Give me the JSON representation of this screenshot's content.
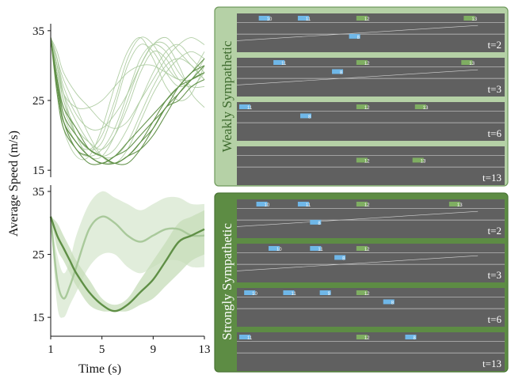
{
  "chart_data": [
    {
      "type": "line",
      "panel": "top-left",
      "ylabel": "Average Speed (m/s)",
      "xlim": [
        1,
        13
      ],
      "ylim": [
        14,
        36
      ],
      "yticks": [
        15,
        25,
        35
      ],
      "colors": {
        "light": "#a9c99b",
        "dark": "#5f8f46"
      },
      "x": [
        1,
        1.5,
        2,
        3,
        4,
        5,
        6,
        7,
        8,
        9,
        10,
        11,
        12,
        13
      ],
      "series": [
        {
          "group": "light",
          "values": [
            34,
            30,
            25,
            21,
            19,
            18,
            20,
            24,
            29,
            32,
            31,
            28,
            27,
            29
          ]
        },
        {
          "group": "light",
          "values": [
            34,
            29,
            24,
            20,
            18,
            19,
            24,
            30,
            33,
            32,
            29,
            27,
            28,
            31
          ]
        },
        {
          "group": "light",
          "values": [
            34,
            31,
            27,
            23,
            21,
            21,
            23,
            26,
            30,
            33,
            34,
            32,
            30,
            28
          ]
        },
        {
          "group": "light",
          "values": [
            34,
            28,
            22,
            18,
            17,
            18,
            21,
            26,
            31,
            33,
            32,
            29,
            27,
            27
          ]
        },
        {
          "group": "light",
          "values": [
            34,
            30,
            25,
            20,
            18,
            17,
            18,
            21,
            25,
            29,
            32,
            33,
            31,
            29
          ]
        },
        {
          "group": "light",
          "values": [
            34,
            32,
            29,
            26,
            24,
            22,
            21,
            22,
            25,
            28,
            31,
            33,
            34,
            33
          ]
        },
        {
          "group": "light",
          "values": [
            34,
            29,
            23,
            19,
            18,
            20,
            25,
            31,
            34,
            33,
            30,
            28,
            29,
            32
          ]
        },
        {
          "group": "light",
          "values": [
            34,
            30,
            26,
            22,
            19,
            17,
            17,
            19,
            23,
            27,
            30,
            31,
            30,
            28
          ]
        },
        {
          "group": "light",
          "values": [
            34,
            31,
            28,
            24,
            20,
            17,
            16,
            18,
            22,
            26,
            29,
            31,
            32,
            31
          ]
        },
        {
          "group": "light",
          "values": [
            34,
            28,
            21,
            17,
            17,
            21,
            27,
            32,
            34,
            31,
            27,
            25,
            26,
            30
          ]
        },
        {
          "group": "light",
          "values": [
            34,
            30,
            26,
            24,
            24,
            25,
            27,
            29,
            30,
            30,
            29,
            28,
            28,
            29
          ]
        },
        {
          "group": "light",
          "values": [
            34,
            31,
            26,
            20,
            17,
            17,
            20,
            25,
            30,
            33,
            33,
            30,
            26,
            24
          ]
        },
        {
          "group": "dark",
          "values": [
            34,
            27,
            22,
            19,
            17,
            16,
            16,
            17,
            19,
            21,
            24,
            26,
            28,
            30
          ]
        },
        {
          "group": "dark",
          "values": [
            34,
            28,
            23,
            20,
            18,
            17,
            16,
            17,
            18,
            20,
            23,
            26,
            28,
            29
          ]
        },
        {
          "group": "dark",
          "values": [
            34,
            27,
            22,
            18,
            17,
            16,
            17,
            18,
            20,
            22,
            24,
            27,
            29,
            31
          ]
        },
        {
          "group": "dark",
          "values": [
            34,
            28,
            24,
            21,
            18,
            17,
            16,
            16,
            18,
            21,
            24,
            25,
            27,
            28
          ]
        },
        {
          "group": "dark",
          "values": [
            34,
            26,
            21,
            18,
            16,
            16,
            17,
            19,
            21,
            23,
            25,
            27,
            29,
            30
          ]
        },
        {
          "group": "dark",
          "values": [
            34,
            27,
            22,
            19,
            17,
            16,
            16,
            17,
            19,
            22,
            25,
            27,
            28,
            29
          ]
        }
      ]
    },
    {
      "type": "line",
      "panel": "bottom-left",
      "xlabel": "Time (s)",
      "xlim": [
        1,
        13
      ],
      "ylim": [
        12,
        36
      ],
      "xticks": [
        1,
        5,
        9,
        13
      ],
      "yticks": [
        15,
        25,
        35
      ],
      "colors": {
        "light": "#a9c99b",
        "dark": "#5f8f46",
        "light_band": "#dcead5",
        "dark_band": "#c5dcb8"
      },
      "x": [
        1,
        1.5,
        2,
        2.5,
        3,
        4,
        5,
        6,
        7,
        8,
        9,
        10,
        11,
        12,
        13
      ],
      "series": [
        {
          "group": "light",
          "values": [
            31,
            21,
            18,
            20,
            23,
            29,
            31,
            30,
            28,
            27,
            28,
            29,
            29,
            28,
            28
          ],
          "lower": [
            31,
            17,
            15,
            17,
            19,
            23,
            25,
            25,
            23,
            22,
            23,
            24,
            24,
            23,
            23
          ],
          "upper": [
            31,
            25,
            22,
            24,
            28,
            33,
            35,
            34,
            33,
            32,
            33,
            34,
            34,
            33,
            33
          ]
        },
        {
          "group": "dark",
          "values": [
            31,
            28,
            26,
            24,
            22,
            19,
            17,
            16,
            17,
            19,
            21,
            24,
            27,
            28,
            29
          ],
          "lower": [
            31,
            26,
            24,
            22,
            20,
            17,
            16,
            16,
            16,
            17,
            18,
            20,
            22,
            24,
            25
          ],
          "upper": [
            31,
            30,
            28,
            26,
            24,
            21,
            18,
            17,
            18,
            21,
            24,
            27,
            30,
            31,
            32
          ]
        }
      ]
    }
  ],
  "panels": {
    "weak": {
      "title": "Weakly Sympathetic",
      "rows": [
        {
          "t": "t=2",
          "cars": [
            {
              "x": 0.08,
              "lane": 0,
              "c": "blue",
              "label": "10"
            },
            {
              "x": 0.24,
              "lane": 0,
              "c": "blue",
              "label": "11"
            },
            {
              "x": 0.48,
              "lane": 0,
              "c": "green",
              "label": "12"
            },
            {
              "x": 0.45,
              "lane": 2,
              "c": "blue",
              "label": "8"
            },
            {
              "x": 0.92,
              "lane": 0,
              "c": "green",
              "label": "13"
            }
          ]
        },
        {
          "t": "t=3",
          "cars": [
            {
              "x": 0.14,
              "lane": 0,
              "c": "blue",
              "label": "11"
            },
            {
              "x": 0.38,
              "lane": 1,
              "c": "blue",
              "label": "8"
            },
            {
              "x": 0.48,
              "lane": 0,
              "c": "green",
              "label": "12"
            },
            {
              "x": 0.91,
              "lane": 0,
              "c": "green",
              "label": "13"
            }
          ]
        },
        {
          "t": "t=6",
          "cars": [
            {
              "x": 0.0,
              "lane": 0,
              "c": "blue",
              "label": "11"
            },
            {
              "x": 0.25,
              "lane": 1,
              "c": "blue",
              "label": "8"
            },
            {
              "x": 0.48,
              "lane": 0,
              "c": "green",
              "label": "12"
            },
            {
              "x": 0.72,
              "lane": 0,
              "c": "green",
              "label": "13"
            }
          ]
        },
        {
          "t": "t=13",
          "cars": [
            {
              "x": 0.48,
              "lane": 1,
              "c": "green",
              "label": "12"
            },
            {
              "x": 0.71,
              "lane": 1,
              "c": "green",
              "label": "13"
            }
          ]
        }
      ]
    },
    "strong": {
      "title": "Strongly Sympathetic",
      "rows": [
        {
          "t": "t=2",
          "cars": [
            {
              "x": 0.07,
              "lane": 0,
              "c": "blue",
              "label": "10"
            },
            {
              "x": 0.24,
              "lane": 0,
              "c": "blue",
              "label": "11"
            },
            {
              "x": 0.48,
              "lane": 0,
              "c": "green",
              "label": "12"
            },
            {
              "x": 0.29,
              "lane": 2,
              "c": "blue",
              "label": "8"
            },
            {
              "x": 0.86,
              "lane": 0,
              "c": "green",
              "label": "13"
            }
          ]
        },
        {
          "t": "t=3",
          "cars": [
            {
              "x": 0.12,
              "lane": 0,
              "c": "blue",
              "label": "10"
            },
            {
              "x": 0.29,
              "lane": 0,
              "c": "blue",
              "label": "11"
            },
            {
              "x": 0.39,
              "lane": 1,
              "c": "blue",
              "label": "8"
            },
            {
              "x": 0.48,
              "lane": 0,
              "c": "green",
              "label": "12"
            }
          ]
        },
        {
          "t": "t=6",
          "cars": [
            {
              "x": 0.02,
              "lane": 0,
              "c": "blue",
              "label": "10"
            },
            {
              "x": 0.18,
              "lane": 0,
              "c": "blue",
              "label": "11"
            },
            {
              "x": 0.33,
              "lane": 0,
              "c": "blue",
              "label": "9"
            },
            {
              "x": 0.48,
              "lane": 0,
              "c": "green",
              "label": "12"
            },
            {
              "x": 0.59,
              "lane": 1,
              "c": "blue",
              "label": "8"
            }
          ]
        },
        {
          "t": "t=13",
          "cars": [
            {
              "x": 0.0,
              "lane": 0,
              "c": "blue",
              "label": "11"
            },
            {
              "x": 0.48,
              "lane": 0,
              "c": "green",
              "label": "12"
            },
            {
              "x": 0.68,
              "lane": 0,
              "c": "blue",
              "label": "8"
            }
          ]
        }
      ]
    }
  }
}
